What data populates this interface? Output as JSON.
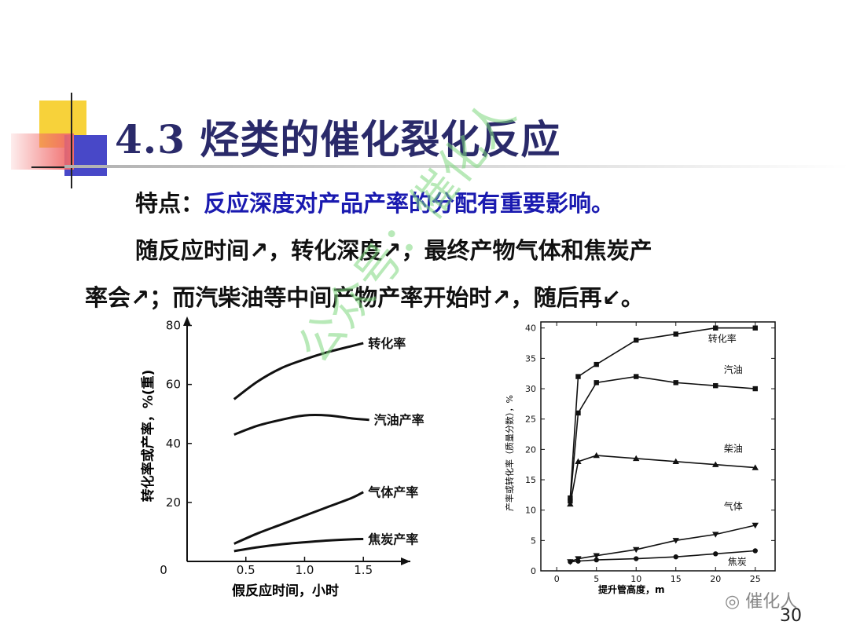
{
  "slide": {
    "title": "4.3 烃类的催化裂化反应",
    "feature_label": "特点：",
    "feature_text": "反应深度对产品产率的分配有重要影响。",
    "body_line1": "随反应时间↗，转化深度↗，最终产物气体和焦炭产",
    "body_line2": "率会↗；而汽柴油等中间产物产率开始时↗，随后再↙。",
    "watermark": "公众号：催化人",
    "brand": "催化人",
    "page_number": "30"
  },
  "colors": {
    "title": "#2a2a6a",
    "feature": "#1a1ab0",
    "watermark": "#7fd87f"
  },
  "chart_data": [
    {
      "type": "line",
      "xlabel": "假反应时间，小时",
      "ylabel": "转化率或产率，%(重)",
      "xticks": [
        "0",
        "0.5",
        "1.0",
        "1.5"
      ],
      "yticks": [
        "20",
        "40",
        "60",
        "80"
      ],
      "xlim": [
        0,
        1.9
      ],
      "ylim": [
        0,
        82
      ],
      "series": [
        {
          "name": "转化率",
          "x": [
            0.4,
            0.6,
            0.8,
            1.0,
            1.2,
            1.4,
            1.5
          ],
          "y": [
            55,
            61,
            65.5,
            68.5,
            71,
            73,
            74
          ]
        },
        {
          "name": "汽油产率",
          "x": [
            0.4,
            0.6,
            0.8,
            1.0,
            1.2,
            1.4,
            1.55
          ],
          "y": [
            43,
            46,
            48,
            49.5,
            49.5,
            48.5,
            48
          ]
        },
        {
          "name": "气体产率",
          "x": [
            0.4,
            0.6,
            0.8,
            1.0,
            1.2,
            1.4,
            1.5
          ],
          "y": [
            6,
            9.5,
            12.5,
            15.5,
            18.5,
            21.5,
            23.5
          ]
        },
        {
          "name": "焦炭产率",
          "x": [
            0.4,
            0.6,
            0.8,
            1.0,
            1.2,
            1.4,
            1.5
          ],
          "y": [
            3.5,
            4.8,
            5.8,
            6.5,
            7.1,
            7.5,
            7.6
          ]
        }
      ]
    },
    {
      "type": "line",
      "xlabel": "提升管高度，m",
      "ylabel": "产率或转化率（质量分数），%",
      "xticks": [
        "0",
        "5",
        "10",
        "15",
        "20",
        "25"
      ],
      "yticks": [
        "0",
        "5",
        "10",
        "15",
        "20",
        "25",
        "30",
        "35",
        "40"
      ],
      "xlim": [
        -2,
        27.5
      ],
      "ylim": [
        0,
        41
      ],
      "series": [
        {
          "name": "转化率",
          "marker": "square",
          "x": [
            1.7,
            2.7,
            5,
            10,
            15,
            20,
            25
          ],
          "y": [
            12,
            32,
            34,
            38,
            39,
            40,
            40
          ]
        },
        {
          "name": "汽油",
          "marker": "square",
          "x": [
            1.7,
            2.7,
            5,
            10,
            15,
            20,
            25
          ],
          "y": [
            11.5,
            26,
            31,
            32,
            31,
            30.5,
            30
          ]
        },
        {
          "name": "柴油",
          "marker": "triangle",
          "x": [
            1.7,
            2.7,
            5,
            10,
            15,
            20,
            25
          ],
          "y": [
            11,
            18,
            19,
            18.5,
            18,
            17.5,
            17
          ]
        },
        {
          "name": "气体",
          "marker": "triangle-down",
          "x": [
            1.7,
            2.7,
            5,
            10,
            15,
            20,
            25
          ],
          "y": [
            1.5,
            2,
            2.5,
            3.5,
            5,
            6,
            7.5
          ]
        },
        {
          "name": "焦炭",
          "marker": "circle",
          "x": [
            1.7,
            2.7,
            5,
            10,
            15,
            20,
            25
          ],
          "y": [
            1.5,
            1.6,
            1.8,
            2,
            2.3,
            2.8,
            3.3
          ]
        }
      ]
    }
  ]
}
